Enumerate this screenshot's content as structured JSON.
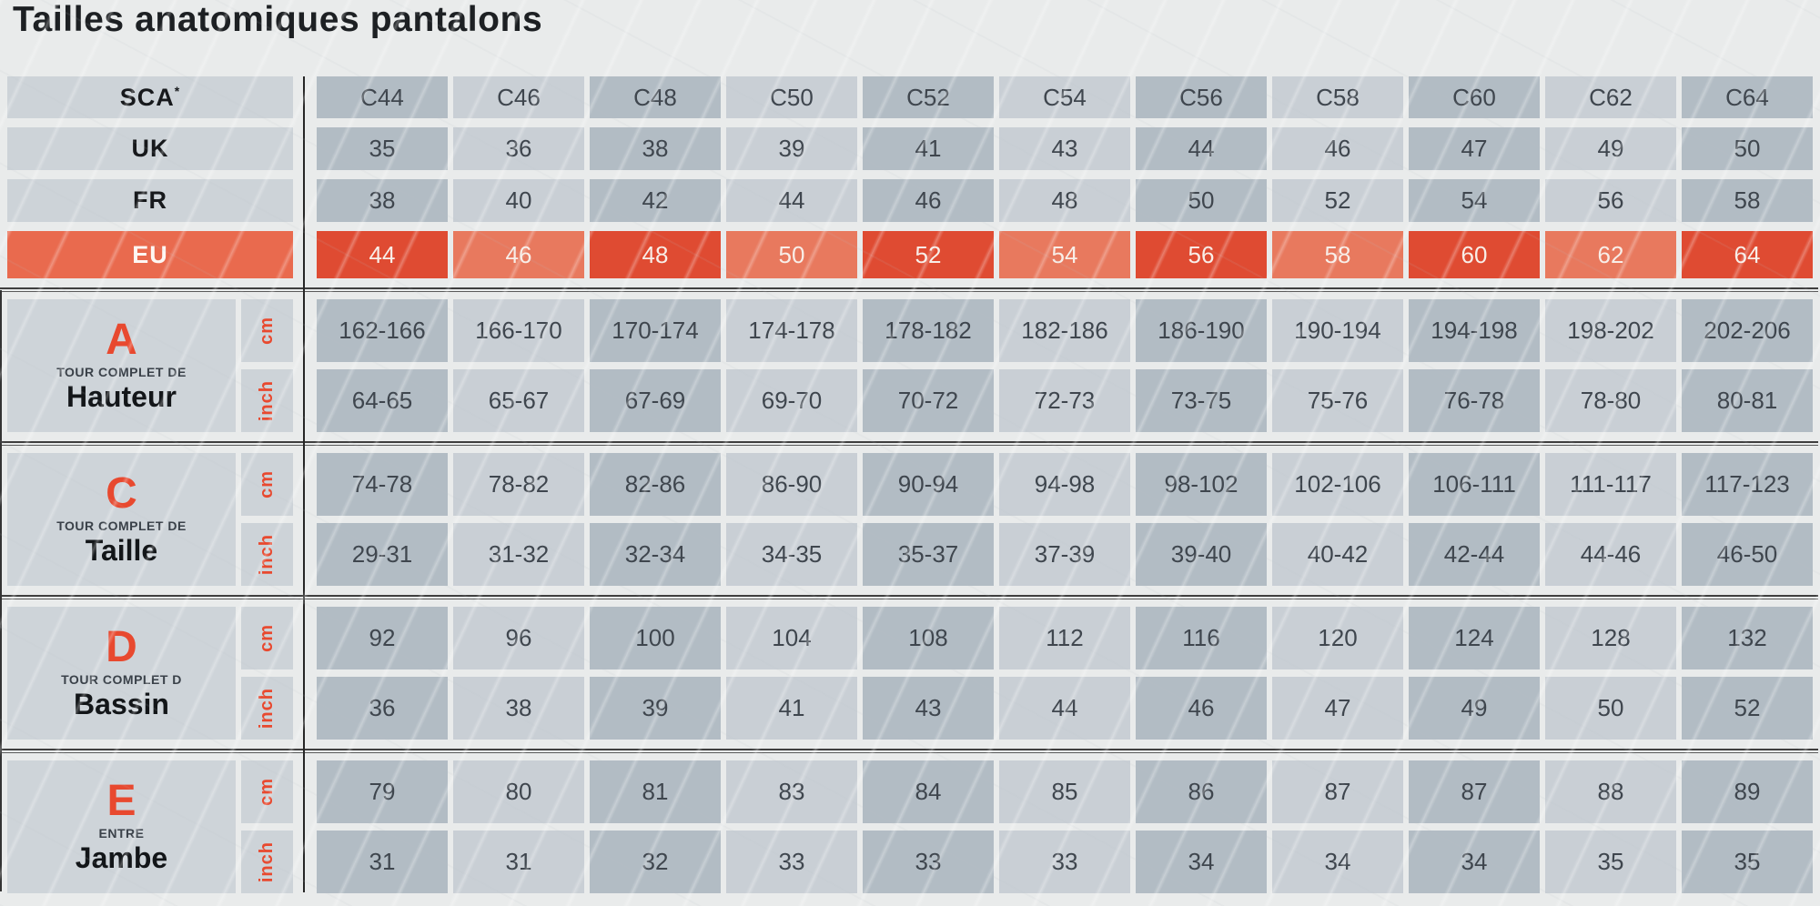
{
  "title": "Tailles anatomiques pantalons",
  "colors": {
    "accent": "#e8492f",
    "eu_label_bg": "#e96a4e",
    "eu_cell_dark": "#df4b32",
    "eu_cell_light": "#e8795e",
    "cell_dark": "#b2bcc4",
    "cell_light": "#c9cfd5",
    "label_bg": "#cdd3d8",
    "text_dark": "#3f464e"
  },
  "header": {
    "rows": [
      {
        "label": "SCA",
        "sup": "*",
        "values": [
          "C44",
          "C46",
          "C48",
          "C50",
          "C52",
          "C54",
          "C56",
          "C58",
          "C60",
          "C62",
          "C64"
        ]
      },
      {
        "label": "UK",
        "values": [
          "35",
          "36",
          "38",
          "39",
          "41",
          "43",
          "44",
          "46",
          "47",
          "49",
          "50"
        ]
      },
      {
        "label": "FR",
        "values": [
          "38",
          "40",
          "42",
          "44",
          "46",
          "48",
          "50",
          "52",
          "54",
          "56",
          "58"
        ]
      },
      {
        "label": "EU",
        "values": [
          "44",
          "46",
          "48",
          "50",
          "52",
          "54",
          "56",
          "58",
          "60",
          "62",
          "64"
        ]
      }
    ]
  },
  "sections": [
    {
      "letter": "A",
      "subtitle": "TOUR COMPLET DE",
      "name": "Hauteur",
      "rows": [
        {
          "unit": "cm",
          "values": [
            "162-166",
            "166-170",
            "170-174",
            "174-178",
            "178-182",
            "182-186",
            "186-190",
            "190-194",
            "194-198",
            "198-202",
            "202-206"
          ]
        },
        {
          "unit": "inch",
          "values": [
            "64-65",
            "65-67",
            "67-69",
            "69-70",
            "70-72",
            "72-73",
            "73-75",
            "75-76",
            "76-78",
            "78-80",
            "80-81"
          ]
        }
      ]
    },
    {
      "letter": "C",
      "subtitle": "TOUR COMPLET DE",
      "name": "Taille",
      "rows": [
        {
          "unit": "cm",
          "values": [
            "74-78",
            "78-82",
            "82-86",
            "86-90",
            "90-94",
            "94-98",
            "98-102",
            "102-106",
            "106-111",
            "111-117",
            "117-123"
          ]
        },
        {
          "unit": "inch",
          "values": [
            "29-31",
            "31-32",
            "32-34",
            "34-35",
            "35-37",
            "37-39",
            "39-40",
            "40-42",
            "42-44",
            "44-46",
            "46-50"
          ]
        }
      ]
    },
    {
      "letter": "D",
      "subtitle": "TOUR COMPLET D",
      "name": "Bassin",
      "rows": [
        {
          "unit": "cm",
          "values": [
            "92",
            "96",
            "100",
            "104",
            "108",
            "112",
            "116",
            "120",
            "124",
            "128",
            "132"
          ]
        },
        {
          "unit": "inch",
          "values": [
            "36",
            "38",
            "39",
            "41",
            "43",
            "44",
            "46",
            "47",
            "49",
            "50",
            "52"
          ]
        }
      ]
    },
    {
      "letter": "E",
      "subtitle": "ENTRE",
      "name": "Jambe",
      "rows": [
        {
          "unit": "cm",
          "values": [
            "79",
            "80",
            "81",
            "83",
            "84",
            "85",
            "86",
            "87",
            "87",
            "88",
            "89"
          ]
        },
        {
          "unit": "inch",
          "values": [
            "31",
            "31",
            "32",
            "33",
            "33",
            "33",
            "34",
            "34",
            "34",
            "35",
            "35"
          ]
        }
      ]
    }
  ]
}
